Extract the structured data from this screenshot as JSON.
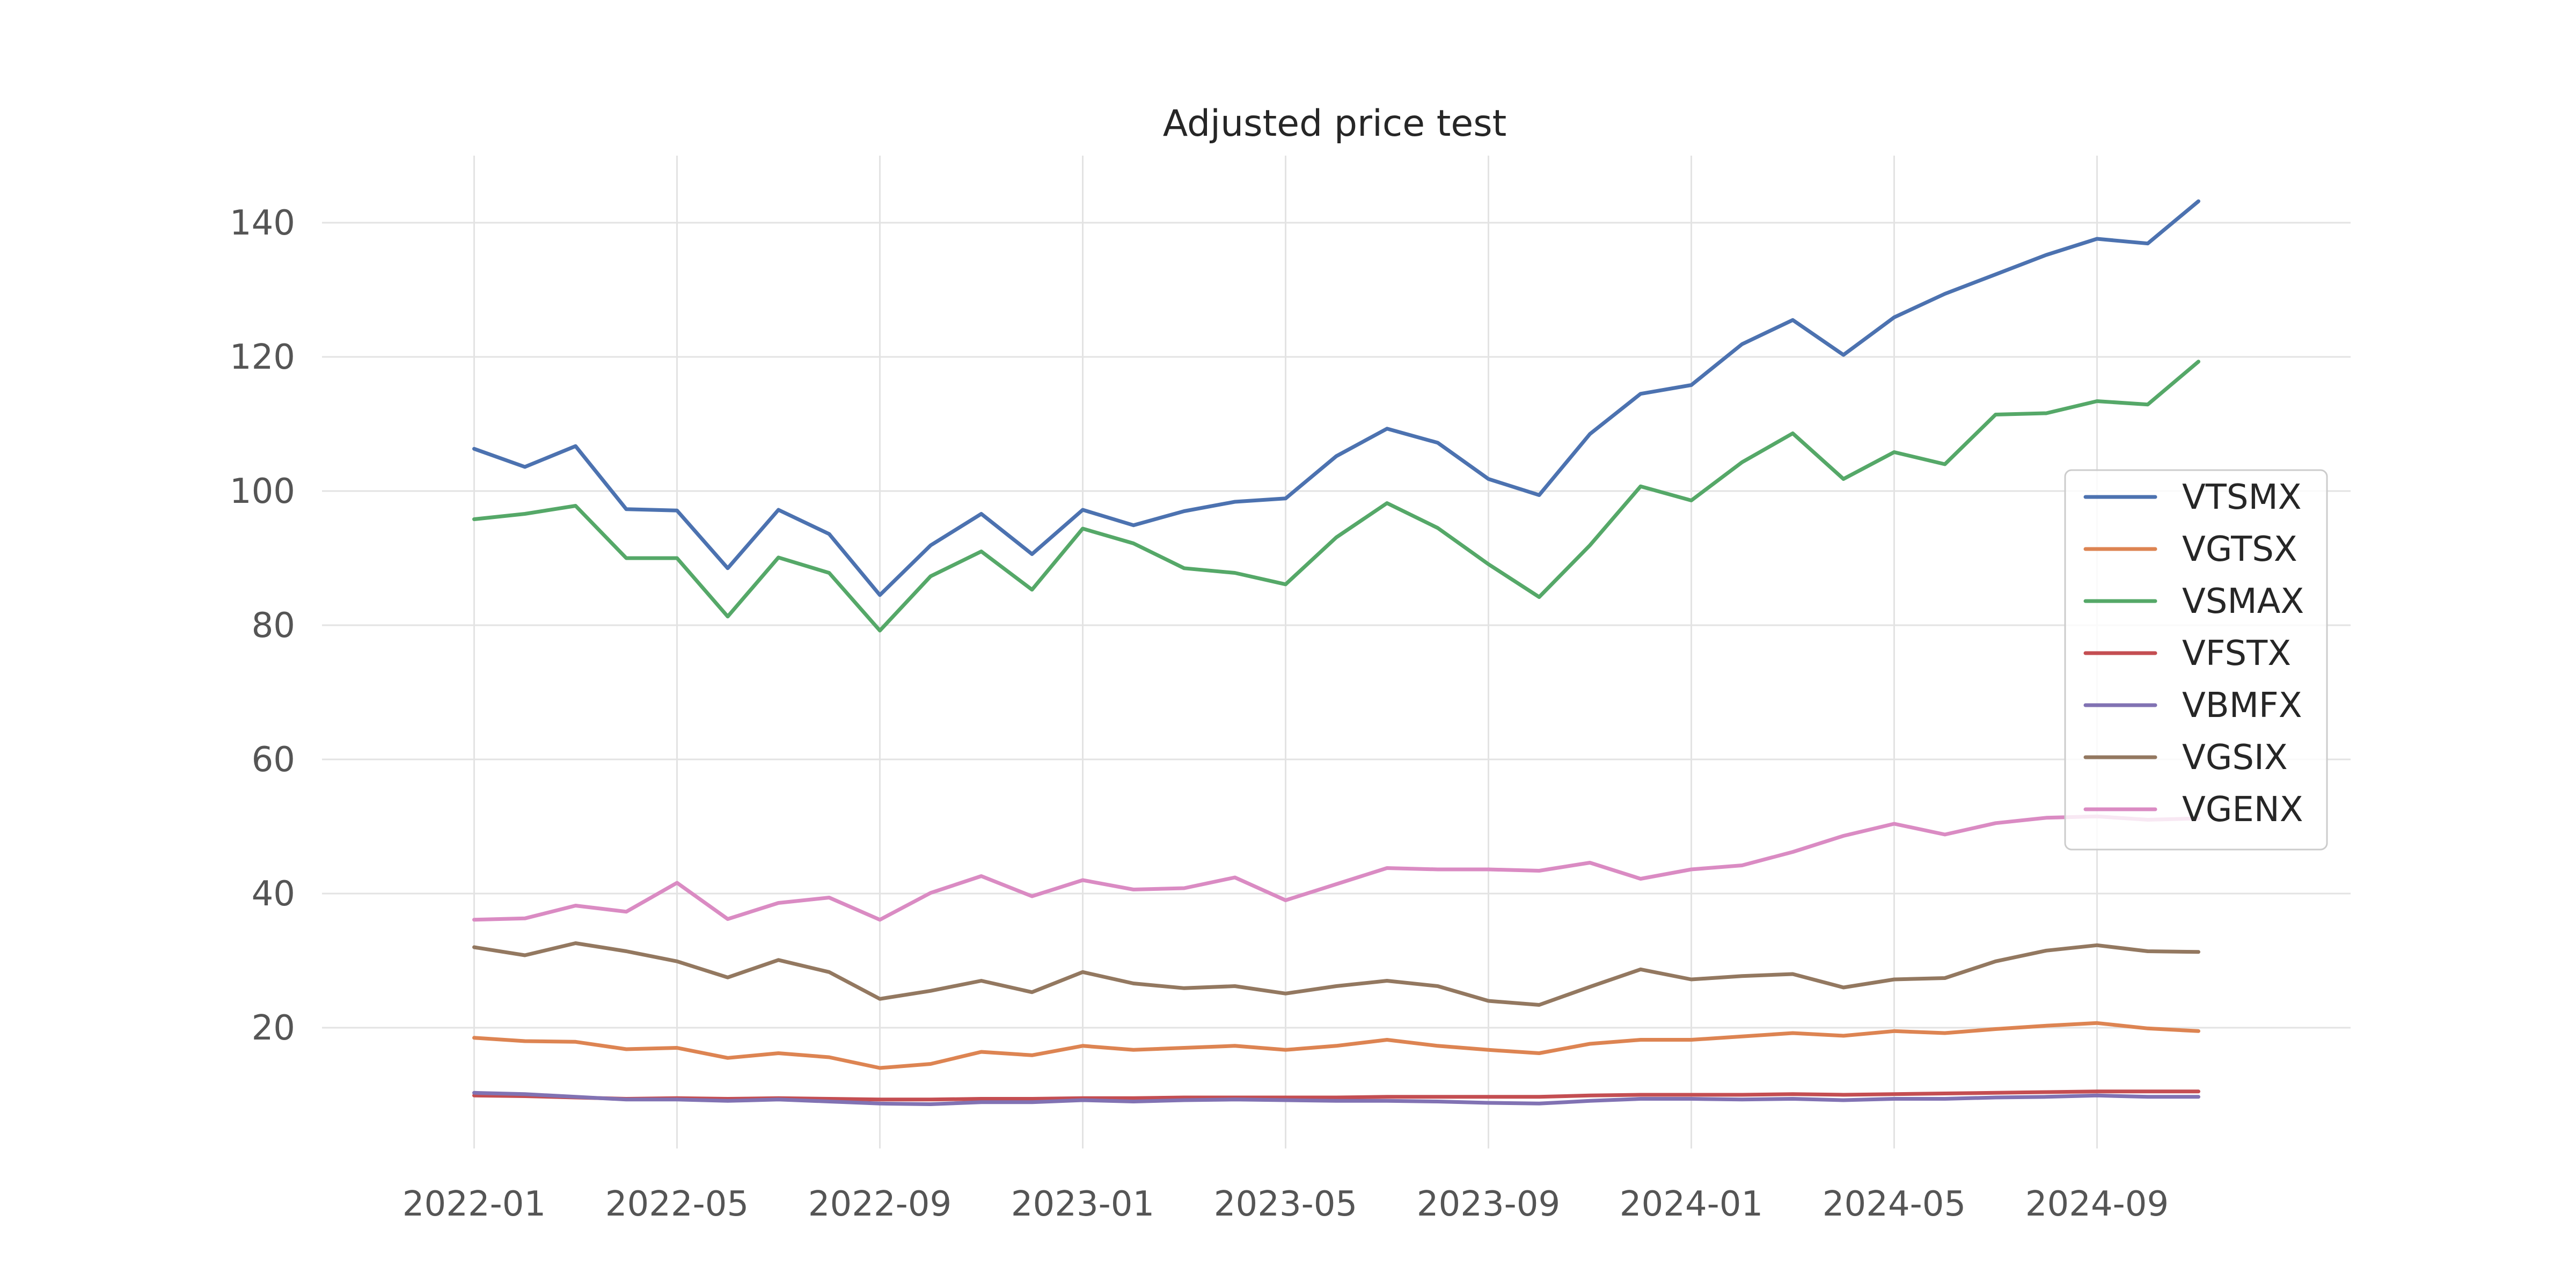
{
  "chart_data": {
    "type": "line",
    "title": "Adjusted price test",
    "xlabel": "",
    "ylabel": "",
    "x_tick_labels": [
      "2022-01",
      "2022-05",
      "2022-09",
      "2023-01",
      "2023-05",
      "2023-09",
      "2024-01",
      "2024-05",
      "2024-09"
    ],
    "y_ticks": [
      20,
      40,
      60,
      80,
      100,
      120,
      140
    ],
    "ylim": [
      2,
      150
    ],
    "xlim": [
      "2021-10",
      "2025-02"
    ],
    "grid": true,
    "legend_position": "center-right",
    "x": [
      "2022-01",
      "2022-02",
      "2022-03",
      "2022-04",
      "2022-05",
      "2022-06",
      "2022-07",
      "2022-08",
      "2022-09",
      "2022-10",
      "2022-11",
      "2022-12",
      "2023-01",
      "2023-02",
      "2023-03",
      "2023-04",
      "2023-05",
      "2023-06",
      "2023-07",
      "2023-08",
      "2023-09",
      "2023-10",
      "2023-11",
      "2023-12",
      "2024-01",
      "2024-02",
      "2024-03",
      "2024-04",
      "2024-05",
      "2024-06",
      "2024-07",
      "2024-08",
      "2024-09",
      "2024-10",
      "2024-11"
    ],
    "series": [
      {
        "name": "VTSMX",
        "color": "#4c72b0",
        "values": [
          106.3,
          103.6,
          106.7,
          97.3,
          97.1,
          88.5,
          97.2,
          93.6,
          84.5,
          91.9,
          96.6,
          90.6,
          97.2,
          94.9,
          97.0,
          98.4,
          98.9,
          105.2,
          109.3,
          107.2,
          101.8,
          99.4,
          108.5,
          114.5,
          115.8,
          121.9,
          125.5,
          120.3,
          125.9,
          129.4,
          132.3,
          135.2,
          137.6,
          136.9,
          143.2
        ]
      },
      {
        "name": "VGTSX",
        "color": "#dd8452",
        "values": [
          18.5,
          18.0,
          17.9,
          16.8,
          17.0,
          15.5,
          16.2,
          15.6,
          14.0,
          14.6,
          16.4,
          15.9,
          17.3,
          16.7,
          17.0,
          17.3,
          16.7,
          17.3,
          18.2,
          17.3,
          16.7,
          16.2,
          17.6,
          18.2,
          18.2,
          18.7,
          19.2,
          18.8,
          19.5,
          19.2,
          19.8,
          20.3,
          20.7,
          19.9,
          19.5
        ]
      },
      {
        "name": "VSMAX",
        "color": "#55a868",
        "values": [
          95.8,
          96.6,
          97.8,
          90.0,
          90.0,
          81.3,
          90.1,
          87.8,
          79.2,
          87.3,
          91.0,
          85.3,
          94.4,
          92.2,
          88.5,
          87.8,
          86.1,
          93.1,
          98.2,
          94.5,
          89.1,
          84.2,
          91.9,
          100.7,
          98.6,
          104.3,
          108.6,
          101.8,
          105.8,
          104.0,
          111.4,
          111.6,
          113.4,
          112.9,
          119.3
        ]
      },
      {
        "name": "VFSTX",
        "color": "#c44e52",
        "values": [
          9.9,
          9.8,
          9.6,
          9.4,
          9.5,
          9.4,
          9.5,
          9.4,
          9.3,
          9.3,
          9.4,
          9.4,
          9.5,
          9.5,
          9.6,
          9.6,
          9.6,
          9.6,
          9.7,
          9.7,
          9.7,
          9.7,
          9.9,
          10.0,
          10.0,
          10.0,
          10.1,
          10.0,
          10.1,
          10.2,
          10.3,
          10.4,
          10.5,
          10.5,
          10.5
        ]
      },
      {
        "name": "VBMFX",
        "color": "#8172b3",
        "values": [
          10.3,
          10.1,
          9.7,
          9.3,
          9.3,
          9.1,
          9.3,
          9.0,
          8.7,
          8.6,
          8.9,
          8.9,
          9.2,
          9.0,
          9.2,
          9.3,
          9.2,
          9.1,
          9.1,
          9.0,
          8.8,
          8.7,
          9.1,
          9.4,
          9.4,
          9.3,
          9.4,
          9.2,
          9.4,
          9.4,
          9.6,
          9.7,
          9.9,
          9.7,
          9.7
        ]
      },
      {
        "name": "VGSIX",
        "color": "#937860",
        "values": [
          32.0,
          30.8,
          32.6,
          31.4,
          29.9,
          27.5,
          30.1,
          28.3,
          24.3,
          25.5,
          27.0,
          25.3,
          28.3,
          26.6,
          25.9,
          26.2,
          25.1,
          26.2,
          27.0,
          26.2,
          24.0,
          23.4,
          26.1,
          28.7,
          27.2,
          27.7,
          28.0,
          26.0,
          27.2,
          27.4,
          29.9,
          31.5,
          32.3,
          31.4,
          31.3
        ]
      },
      {
        "name": "VGENX",
        "color": "#da8bc3",
        "values": [
          36.1,
          36.3,
          38.2,
          37.3,
          41.6,
          36.2,
          38.6,
          39.4,
          36.1,
          40.1,
          42.6,
          39.6,
          42.0,
          40.6,
          40.8,
          42.4,
          39.0,
          41.4,
          43.8,
          43.6,
          43.6,
          43.4,
          44.6,
          42.2,
          43.6,
          44.2,
          46.2,
          48.6,
          50.4,
          48.8,
          50.5,
          51.3,
          51.5,
          51.0,
          51.2
        ]
      }
    ]
  }
}
